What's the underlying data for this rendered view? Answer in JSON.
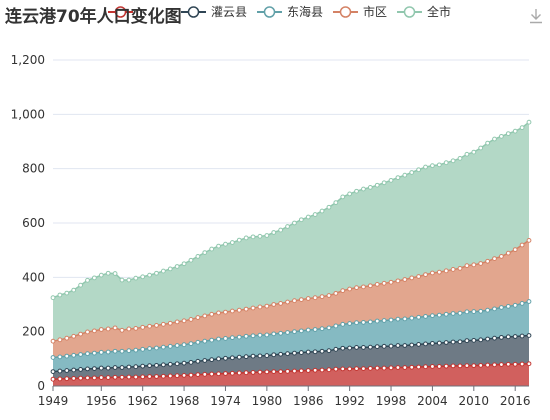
{
  "colors": {
    "background": "#ffffff",
    "grid": "#e0e6f1",
    "axis": "#6e7079",
    "text": "#333333",
    "toolbox": "#aaaaaa"
  },
  "toolbox": {
    "icon": "download-icon"
  },
  "chart_data": {
    "type": "area",
    "stacked": true,
    "title": "连云港70年人口变化图",
    "xlabel": "",
    "ylabel": "",
    "ylim": [
      0,
      1200
    ],
    "yticks": [
      0,
      200,
      400,
      600,
      800,
      1000,
      1200
    ],
    "yticklabels": [
      "0",
      "200",
      "400",
      "600",
      "800",
      "1,000",
      "1,200"
    ],
    "xticks": [
      1949,
      1956,
      1962,
      1968,
      1974,
      1980,
      1986,
      1992,
      1998,
      2004,
      2010,
      2016
    ],
    "grid": true,
    "legend_position": "top",
    "years": [
      1949,
      1950,
      1951,
      1952,
      1953,
      1954,
      1955,
      1956,
      1957,
      1958,
      1959,
      1960,
      1961,
      1962,
      1963,
      1964,
      1965,
      1966,
      1967,
      1968,
      1969,
      1970,
      1971,
      1972,
      1973,
      1974,
      1975,
      1976,
      1977,
      1978,
      1979,
      1980,
      1981,
      1982,
      1983,
      1984,
      1985,
      1986,
      1987,
      1988,
      1989,
      1990,
      1991,
      1992,
      1993,
      1994,
      1995,
      1996,
      1997,
      1998,
      1999,
      2000,
      2001,
      2002,
      2003,
      2004,
      2005,
      2006,
      2007,
      2008,
      2009,
      2010,
      2011,
      2012,
      2013,
      2014,
      2015,
      2016,
      2017,
      2018
    ],
    "series": [
      {
        "name": "",
        "color": "#d1605e",
        "stroke": "#c23531",
        "values": [
          25,
          26,
          27,
          28,
          29,
          30,
          30,
          31,
          31,
          32,
          32,
          33,
          33,
          34,
          35,
          35,
          36,
          37,
          38,
          39,
          40,
          42,
          43,
          44,
          45,
          46,
          47,
          48,
          49,
          50,
          51,
          52,
          53,
          53,
          54,
          55,
          56,
          57,
          58,
          59,
          60,
          62,
          63,
          63,
          64,
          64,
          65,
          66,
          66,
          67,
          68,
          68,
          69,
          70,
          71,
          72,
          72,
          73,
          74,
          74,
          75,
          75,
          76,
          77,
          78,
          79,
          80,
          80,
          81,
          82
        ]
      },
      {
        "name": "灌云县",
        "color": "#6e7a85",
        "stroke": "#2f4554",
        "values": [
          28,
          29,
          30,
          31,
          32,
          33,
          34,
          35,
          35,
          36,
          36,
          37,
          38,
          39,
          40,
          41,
          42,
          43,
          44,
          45,
          47,
          49,
          51,
          53,
          55,
          56,
          57,
          58,
          59,
          60,
          60,
          60,
          62,
          64,
          65,
          66,
          67,
          68,
          68,
          69,
          70,
          73,
          76,
          77,
          78,
          78,
          78,
          79,
          80,
          80,
          81,
          81,
          82,
          83,
          84,
          85,
          86,
          87,
          88,
          89,
          92,
          93,
          94,
          96,
          98,
          100,
          101,
          102,
          103,
          104
        ]
      },
      {
        "name": "东海县",
        "color": "#85bac2",
        "stroke": "#61a0a8",
        "values": [
          52,
          52,
          53,
          54,
          55,
          56,
          57,
          58,
          59,
          60,
          60,
          60,
          61,
          62,
          63,
          64,
          65,
          66,
          67,
          68,
          69,
          70,
          71,
          72,
          73,
          73,
          74,
          74,
          75,
          75,
          76,
          76,
          77,
          77,
          78,
          79,
          80,
          81,
          82,
          83,
          84,
          86,
          88,
          90,
          91,
          92,
          93,
          94,
          95,
          96,
          97,
          98,
          99,
          100,
          101,
          102,
          103,
          104,
          105,
          105,
          106,
          106,
          105,
          106,
          108,
          110,
          112,
          115,
          120,
          125
        ]
      },
      {
        "name": "市区",
        "color": "#e2a68e",
        "stroke": "#d48265",
        "values": [
          60,
          63,
          66,
          70,
          75,
          80,
          82,
          84,
          85,
          86,
          77,
          80,
          80,
          81,
          82,
          83,
          84,
          85,
          87,
          88,
          89,
          91,
          93,
          95,
          96,
          97,
          98,
          99,
          100,
          102,
          104,
          106,
          108,
          110,
          112,
          114,
          115,
          116,
          117,
          118,
          119,
          120,
          124,
          127,
          129,
          131,
          133,
          135,
          137,
          139,
          141,
          145,
          148,
          150,
          154,
          157,
          158,
          160,
          162,
          165,
          170,
          172,
          176,
          180,
          185,
          188,
          196,
          205,
          215,
          225
        ]
      },
      {
        "name": "全市",
        "color": "#b3d8c6",
        "stroke": "#91c7ae",
        "values": [
          160,
          165,
          166,
          170,
          180,
          190,
          195,
          200,
          205,
          200,
          185,
          180,
          185,
          186,
          188,
          192,
          196,
          200,
          204,
          210,
          218,
          225,
          233,
          240,
          246,
          250,
          252,
          258,
          262,
          262,
          260,
          260,
          265,
          270,
          278,
          286,
          294,
          300,
          306,
          315,
          325,
          334,
          345,
          350,
          355,
          360,
          362,
          365,
          370,
          375,
          380,
          384,
          388,
          393,
          396,
          395,
          395,
          398,
          400,
          405,
          410,
          415,
          425,
          435,
          440,
          442,
          440,
          436,
          432,
          435
        ]
      }
    ]
  }
}
